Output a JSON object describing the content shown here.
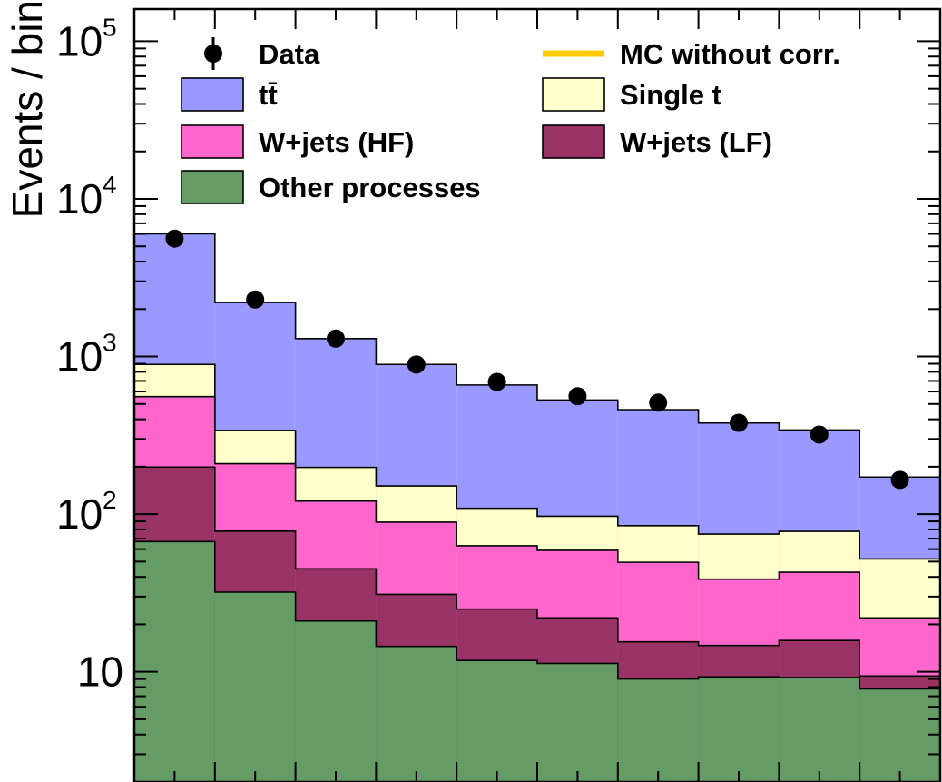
{
  "chart_data": {
    "type": "stacked-histogram",
    "ylabel": "Events / bin",
    "yscale": "log",
    "ylim": [
      2,
      160000
    ],
    "yticks": [
      {
        "value": 10,
        "label": "10",
        "exp": ""
      },
      {
        "value": 100,
        "label": "10",
        "exp": "2"
      },
      {
        "value": 1000,
        "label": "10",
        "exp": "3"
      },
      {
        "value": 10000,
        "label": "10",
        "exp": "4"
      },
      {
        "value": 100000,
        "label": "10",
        "exp": "5"
      }
    ],
    "n_bins": 10,
    "series": [
      {
        "name": "Other processes",
        "color": "#659b64",
        "values": [
          67,
          32,
          21,
          14.5,
          11.8,
          11.3,
          9.0,
          9.3,
          9.2,
          7.8
        ]
      },
      {
        "name": "W+jets (LF)",
        "color": "#993366",
        "values": [
          132,
          46,
          24,
          16.5,
          13.2,
          10.7,
          6.5,
          5.4,
          6.6,
          1.6
        ]
      },
      {
        "name": "W+jets (HF)",
        "color": "#ff66cc",
        "values": [
          358,
          131,
          76,
          58,
          38,
          37,
          34,
          24,
          27,
          12.6
        ]
      },
      {
        "name": "Single t",
        "color": "#ffffcc",
        "values": [
          334,
          131,
          77,
          62,
          46,
          38,
          35,
          36,
          35,
          30
        ]
      },
      {
        "name": "tt̄",
        "color": "#9999ff",
        "values": [
          5109,
          1860,
          1102,
          740,
          551,
          433,
          376,
          304,
          264,
          120
        ]
      }
    ],
    "data_points": {
      "name": "Data",
      "values": [
        5600,
        2300,
        1300,
        890,
        690,
        560,
        510,
        380,
        320,
        165
      ]
    },
    "legend": {
      "placement": "top",
      "entries": [
        {
          "name": "Data",
          "kind": "marker",
          "color": "#000000"
        },
        {
          "name": "MC without corr.",
          "kind": "line",
          "color": "#ffcc00"
        },
        {
          "name": "tt̄",
          "kind": "box",
          "color": "#9999ff"
        },
        {
          "name": "Single t",
          "kind": "box",
          "color": "#ffffcc"
        },
        {
          "name": "W+jets (HF)",
          "kind": "box",
          "color": "#ff66cc"
        },
        {
          "name": "W+jets (LF)",
          "kind": "box",
          "color": "#993366"
        },
        {
          "name": "Other processes",
          "kind": "box",
          "color": "#659b64"
        }
      ]
    }
  }
}
